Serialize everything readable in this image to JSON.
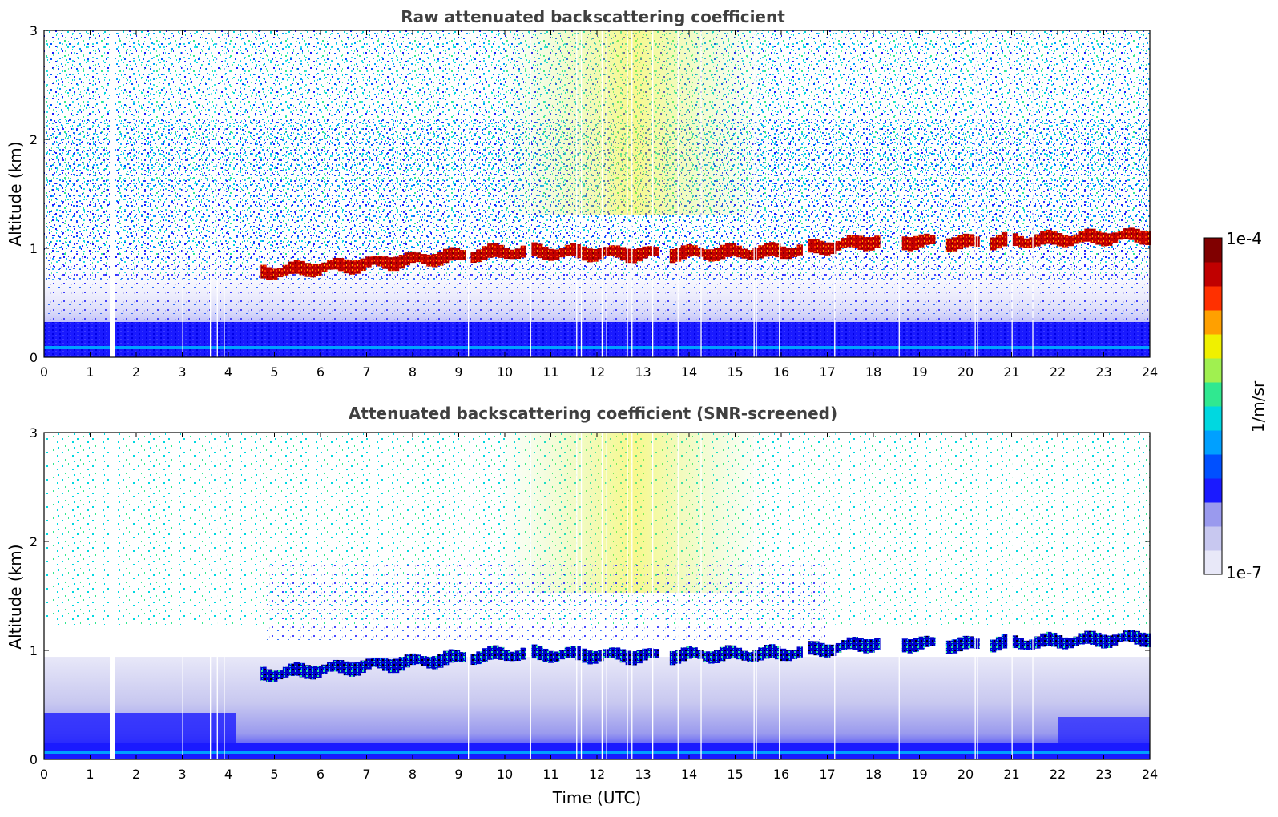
{
  "chart_data": [
    {
      "type": "heatmap",
      "title": "Raw attenuated backscattering coefficient",
      "xlabel": "",
      "ylabel": "Altitude (km)",
      "xlim": [
        0,
        24
      ],
      "ylim": [
        0,
        3
      ],
      "xticks": [
        "0",
        "1",
        "2",
        "3",
        "4",
        "5",
        "6",
        "7",
        "8",
        "9",
        "10",
        "11",
        "12",
        "13",
        "14",
        "15",
        "16",
        "17",
        "18",
        "19",
        "20",
        "21",
        "22",
        "23",
        "24"
      ],
      "yticks": [
        "0",
        "1",
        "2",
        "3"
      ],
      "grid": false,
      "features": {
        "cloud_layer": {
          "description_hours": [
            4.7,
            24
          ],
          "altitude_km_at_hour": [
            [
              4.7,
              0.78
            ],
            [
              7,
              0.86
            ],
            [
              10,
              0.97
            ],
            [
              13,
              0.95
            ],
            [
              16,
              0.97
            ],
            [
              18,
              1.07
            ],
            [
              20,
              1.05
            ],
            [
              24,
              1.12
            ]
          ],
          "value": "1e-4"
        },
        "missing_data_hours": [
          1.5
        ]
      }
    },
    {
      "type": "heatmap",
      "title": "Attenuated backscattering coefficient (SNR-screened)",
      "xlabel": "Time (UTC)",
      "ylabel": "Altitude (km)",
      "xlim": [
        0,
        24
      ],
      "ylim": [
        0,
        3
      ],
      "xticks": [
        "0",
        "1",
        "2",
        "3",
        "4",
        "5",
        "6",
        "7",
        "8",
        "9",
        "10",
        "11",
        "12",
        "13",
        "14",
        "15",
        "16",
        "17",
        "18",
        "19",
        "20",
        "21",
        "22",
        "23",
        "24"
      ],
      "yticks": [
        "0",
        "1",
        "2",
        "3"
      ],
      "grid": false,
      "features": {
        "screened_region_altitude_km": [
          0.4,
          1.6
        ],
        "missing_data_hours": [
          1.5
        ]
      }
    }
  ],
  "colorbar": {
    "label": "1/m/sr",
    "max_label": "1e-4",
    "min_label": "1e-7",
    "scale": "log",
    "colormap": [
      "#e8e8f8",
      "#c8c8f0",
      "#9a9aee",
      "#1a1aff",
      "#0050ff",
      "#00a0ff",
      "#00d8e0",
      "#30e890",
      "#a0f050",
      "#f0f000",
      "#ffa000",
      "#ff3000",
      "#c00000",
      "#800000"
    ]
  }
}
